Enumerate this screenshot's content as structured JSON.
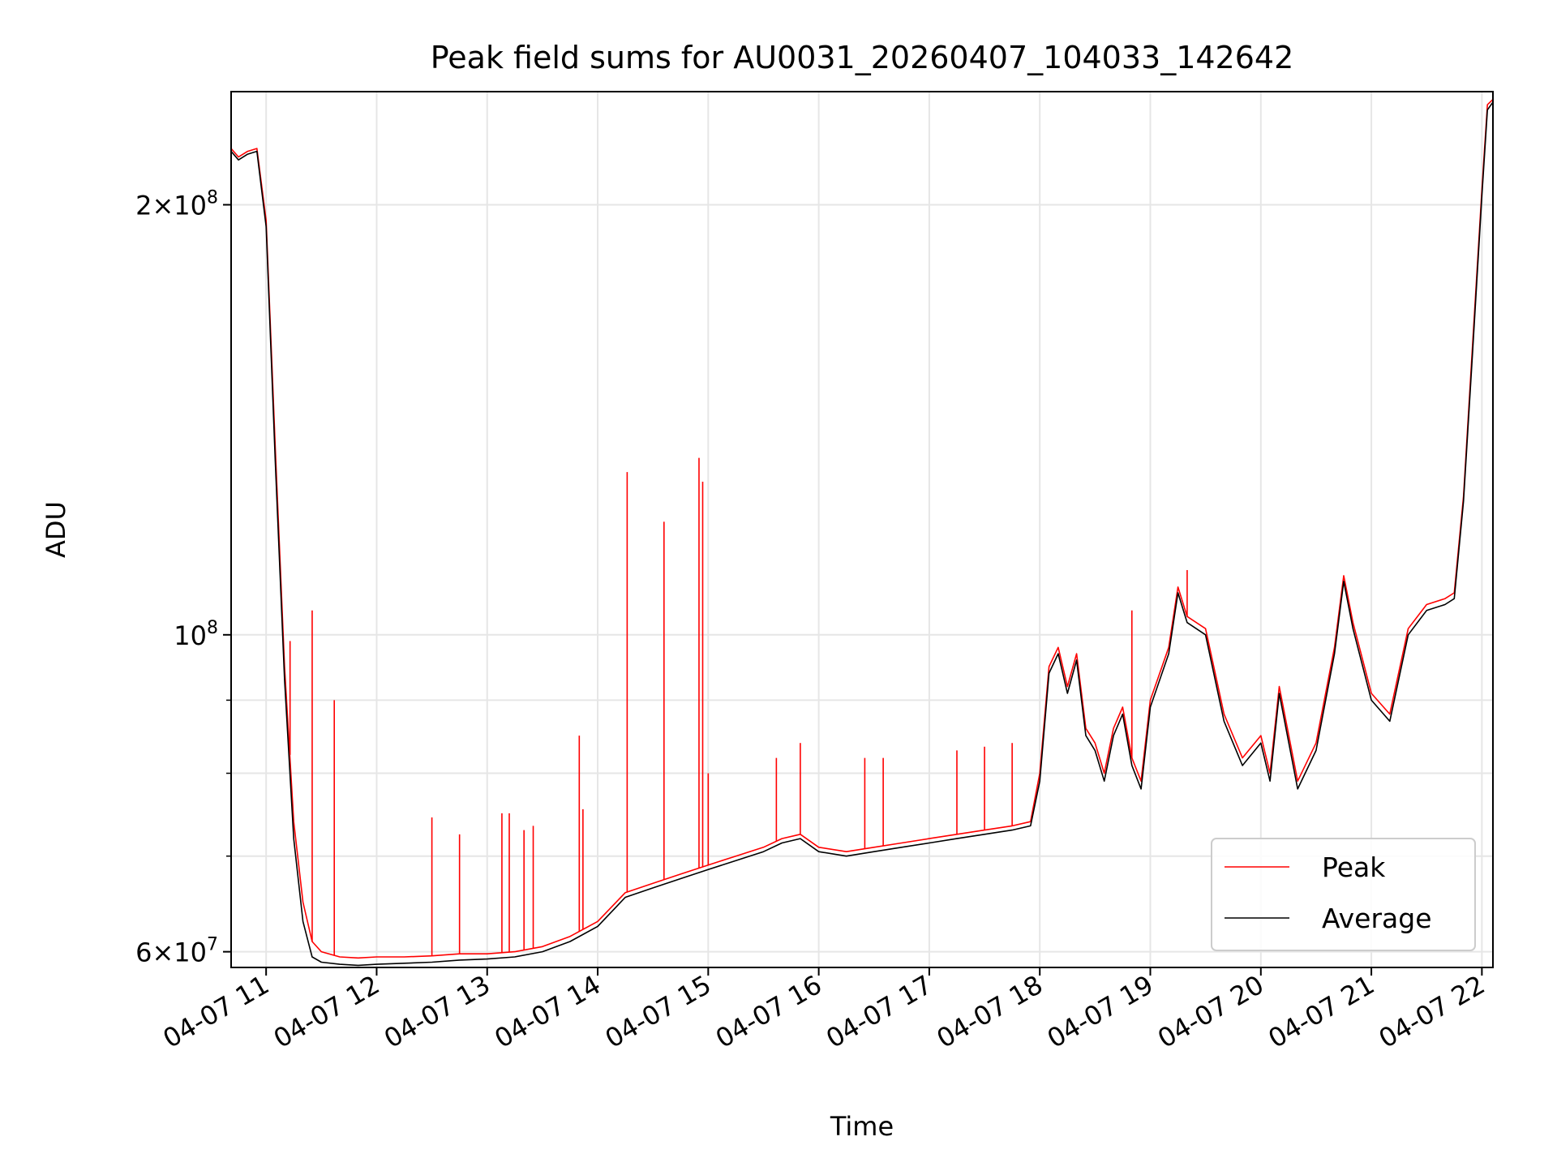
{
  "chart_data": {
    "type": "line",
    "title": "Peak field sums for AU0031_20260407_104033_142642",
    "xlabel": "Time",
    "ylabel": "ADU",
    "x_scale": "time",
    "y_scale": "log",
    "xlim": [
      "04-07 10:41",
      "04-07 22:06"
    ],
    "ylim": [
      58500000,
      240000000
    ],
    "x_ticks": [
      "04-07 11",
      "04-07 12",
      "04-07 13",
      "04-07 14",
      "04-07 15",
      "04-07 16",
      "04-07 17",
      "04-07 18",
      "04-07 19",
      "04-07 20",
      "04-07 21",
      "04-07 22"
    ],
    "y_ticks": [
      {
        "value": 60000000,
        "base": "6",
        "exp": "7"
      },
      {
        "value": 100000000,
        "base": "",
        "exp": "8"
      },
      {
        "value": 200000000,
        "base": "2",
        "exp": "8"
      }
    ],
    "y_minor_ticks": [
      70000000,
      80000000,
      90000000
    ],
    "grid": true,
    "legend_position": "lower-right",
    "x": [
      "04-07 10:41",
      "04-07 10:45",
      "04-07 10:50",
      "04-07 10:55",
      "04-07 11:00",
      "04-07 11:05",
      "04-07 11:10",
      "04-07 11:15",
      "04-07 11:20",
      "04-07 11:25",
      "04-07 11:30",
      "04-07 11:40",
      "04-07 11:50",
      "04-07 12:00",
      "04-07 12:15",
      "04-07 12:30",
      "04-07 12:45",
      "04-07 13:00",
      "04-07 13:15",
      "04-07 13:30",
      "04-07 13:45",
      "04-07 14:00",
      "04-07 14:15",
      "04-07 14:30",
      "04-07 14:45",
      "04-07 15:00",
      "04-07 15:15",
      "04-07 15:30",
      "04-07 15:40",
      "04-07 15:50",
      "04-07 16:00",
      "04-07 16:15",
      "04-07 16:30",
      "04-07 16:45",
      "04-07 17:00",
      "04-07 17:15",
      "04-07 17:30",
      "04-07 17:45",
      "04-07 17:55",
      "04-07 18:00",
      "04-07 18:05",
      "04-07 18:10",
      "04-07 18:15",
      "04-07 18:20",
      "04-07 18:25",
      "04-07 18:30",
      "04-07 18:35",
      "04-07 18:40",
      "04-07 18:45",
      "04-07 18:50",
      "04-07 18:55",
      "04-07 19:00",
      "04-07 19:10",
      "04-07 19:15",
      "04-07 19:20",
      "04-07 19:30",
      "04-07 19:40",
      "04-07 19:50",
      "04-07 20:00",
      "04-07 20:05",
      "04-07 20:10",
      "04-07 20:20",
      "04-07 20:30",
      "04-07 20:40",
      "04-07 20:45",
      "04-07 20:50",
      "04-07 21:00",
      "04-07 21:10",
      "04-07 21:20",
      "04-07 21:30",
      "04-07 21:40",
      "04-07 21:45",
      "04-07 21:50",
      "04-07 21:55",
      "04-07 22:00",
      "04-07 22:03",
      "04-07 22:06"
    ],
    "series": [
      {
        "name": "Peak",
        "color": "#ff0000",
        "values": [
          219000000,
          216000000,
          218000000,
          219000000,
          195000000,
          135000000,
          95000000,
          74000000,
          65000000,
          61000000,
          60000000,
          59500000,
          59400000,
          59500000,
          59500000,
          59600000,
          59800000,
          59800000,
          60000000,
          60500000,
          61500000,
          63000000,
          66000000,
          67000000,
          68000000,
          69000000,
          70000000,
          71000000,
          72000000,
          72500000,
          71000000,
          70500000,
          71000000,
          71500000,
          72000000,
          72500000,
          73000000,
          73500000,
          74000000,
          80000000,
          95000000,
          98000000,
          92000000,
          97000000,
          86000000,
          84000000,
          80000000,
          86000000,
          89000000,
          82000000,
          79000000,
          90000000,
          98000000,
          108000000,
          103000000,
          101000000,
          88000000,
          82000000,
          85000000,
          80000000,
          92000000,
          79000000,
          84000000,
          98000000,
          110000000,
          102000000,
          91000000,
          88000000,
          101000000,
          105000000,
          106000000,
          107000000,
          125000000,
          160000000,
          205000000,
          235000000,
          237000000
        ]
      },
      {
        "name": "Average",
        "color": "#000000",
        "values": [
          218000000,
          215000000,
          217000000,
          218000000,
          193000000,
          132000000,
          93000000,
          72000000,
          63000000,
          59500000,
          59000000,
          58800000,
          58700000,
          58800000,
          58900000,
          59000000,
          59200000,
          59300000,
          59500000,
          60000000,
          61000000,
          62500000,
          65500000,
          66500000,
          67500000,
          68500000,
          69500000,
          70500000,
          71500000,
          72000000,
          70500000,
          70000000,
          70500000,
          71000000,
          71500000,
          72000000,
          72500000,
          73000000,
          73500000,
          79000000,
          94000000,
          97000000,
          91000000,
          96000000,
          85000000,
          83000000,
          79000000,
          85000000,
          88000000,
          81000000,
          78000000,
          89000000,
          97000000,
          107000000,
          102000000,
          100000000,
          87000000,
          81000000,
          84000000,
          79000000,
          91000000,
          78000000,
          83000000,
          97000000,
          109000000,
          101000000,
          90000000,
          87000000,
          100000000,
          104000000,
          105000000,
          106000000,
          124000000,
          158000000,
          203000000,
          233000000,
          236000000
        ]
      }
    ],
    "spikes": [
      {
        "series": "Peak",
        "x": "04-07 11:13",
        "value": 99000000
      },
      {
        "series": "Peak",
        "x": "04-07 11:25",
        "value": 104000000
      },
      {
        "series": "Peak",
        "x": "04-07 11:37",
        "value": 90000000
      },
      {
        "series": "Peak",
        "x": "04-07 12:30",
        "value": 74500000
      },
      {
        "series": "Peak",
        "x": "04-07 12:45",
        "value": 72500000
      },
      {
        "series": "Peak",
        "x": "04-07 13:08",
        "value": 75000000
      },
      {
        "series": "Peak",
        "x": "04-07 13:12",
        "value": 75000000
      },
      {
        "series": "Peak",
        "x": "04-07 13:20",
        "value": 73000000
      },
      {
        "series": "Peak",
        "x": "04-07 13:25",
        "value": 73500000
      },
      {
        "series": "Peak",
        "x": "04-07 13:50",
        "value": 85000000
      },
      {
        "series": "Peak",
        "x": "04-07 13:52",
        "value": 75500000
      },
      {
        "series": "Peak",
        "x": "04-07 14:16",
        "value": 130000000
      },
      {
        "series": "Peak",
        "x": "04-07 14:36",
        "value": 120000000
      },
      {
        "series": "Peak",
        "x": "04-07 14:55",
        "value": 133000000
      },
      {
        "series": "Peak",
        "x": "04-07 14:57",
        "value": 128000000
      },
      {
        "series": "Peak",
        "x": "04-07 15:00",
        "value": 80000000
      },
      {
        "series": "Peak",
        "x": "04-07 15:37",
        "value": 82000000
      },
      {
        "series": "Peak",
        "x": "04-07 15:50",
        "value": 84000000
      },
      {
        "series": "Peak",
        "x": "04-07 16:25",
        "value": 82000000
      },
      {
        "series": "Peak",
        "x": "04-07 16:35",
        "value": 82000000
      },
      {
        "series": "Peak",
        "x": "04-07 17:15",
        "value": 83000000
      },
      {
        "series": "Peak",
        "x": "04-07 17:30",
        "value": 83500000
      },
      {
        "series": "Peak",
        "x": "04-07 17:45",
        "value": 84000000
      },
      {
        "series": "Peak",
        "x": "04-07 18:50",
        "value": 104000000
      },
      {
        "series": "Peak",
        "x": "04-07 19:20",
        "value": 111000000
      }
    ]
  }
}
